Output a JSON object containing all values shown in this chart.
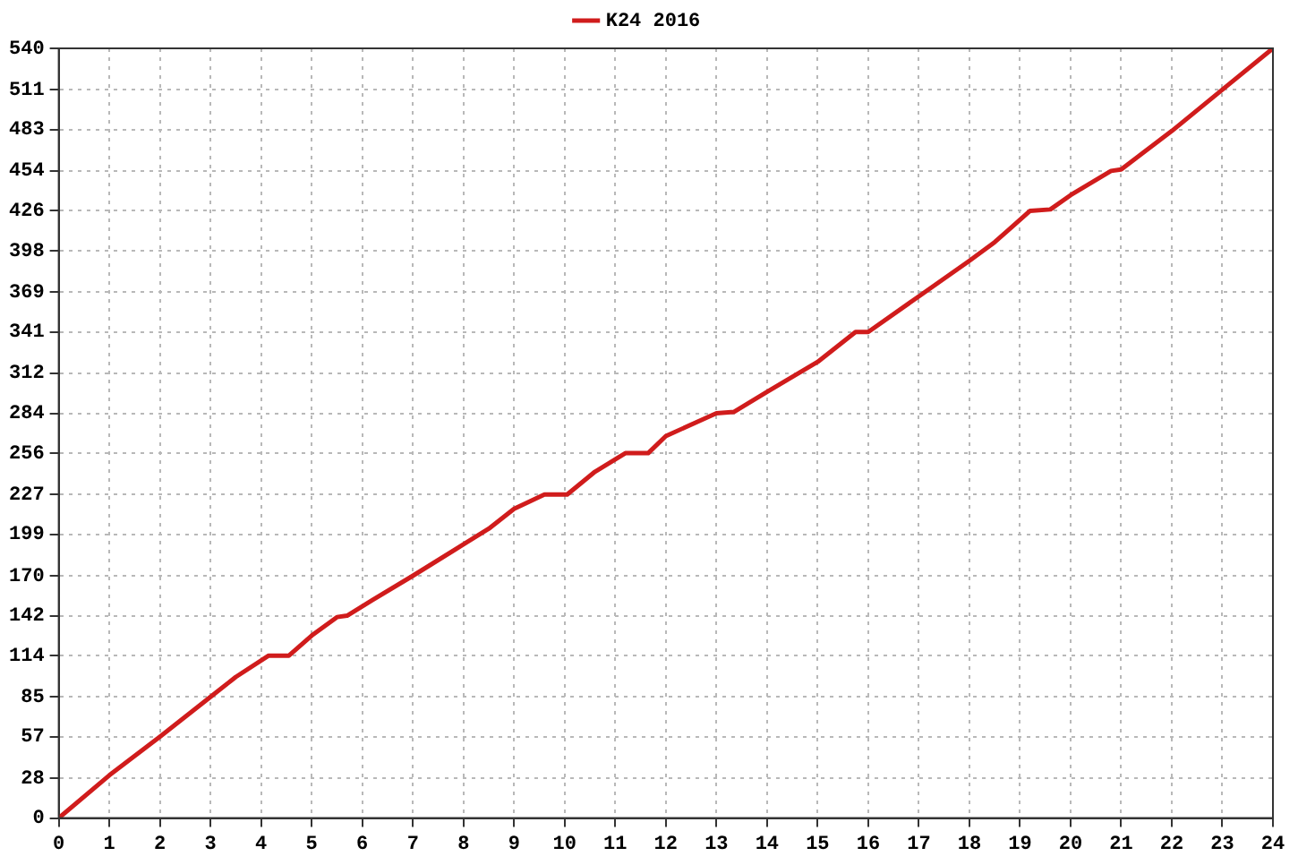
{
  "chart_data": {
    "type": "line",
    "x": [
      0,
      1,
      2,
      3,
      3.5,
      4.15,
      4.55,
      5,
      5.5,
      5.7,
      6.2,
      7,
      8,
      8.5,
      9,
      9.6,
      10.05,
      10.6,
      11.2,
      11.65,
      12,
      13,
      13.35,
      14,
      15,
      15.75,
      16,
      17,
      18,
      18.5,
      19.2,
      19.6,
      20,
      20.8,
      21,
      22,
      23,
      24
    ],
    "series": [
      {
        "name": "K24 2016",
        "color": "#d01c1c",
        "values": [
          0,
          30,
          57,
          85,
          99,
          114,
          114,
          128,
          141,
          142,
          153,
          170,
          192,
          203,
          217,
          227,
          227,
          243,
          256,
          256,
          268,
          284,
          285,
          299,
          320,
          341,
          341,
          366,
          391,
          404,
          426,
          427,
          437,
          454,
          455,
          482,
          511,
          540
        ]
      }
    ],
    "xlim": [
      0,
      24
    ],
    "xticks": [
      0,
      1,
      2,
      3,
      4,
      5,
      6,
      7,
      8,
      9,
      10,
      11,
      12,
      13,
      14,
      15,
      16,
      17,
      18,
      19,
      20,
      21,
      22,
      23,
      24
    ],
    "ylim": [
      0,
      540
    ],
    "yticks": [
      0,
      28,
      57,
      85,
      114,
      142,
      170,
      199,
      227,
      256,
      284,
      312,
      341,
      369,
      398,
      426,
      454,
      483,
      511,
      540
    ],
    "grid": true,
    "legend": "top",
    "marker": "none",
    "line_style": "solid"
  }
}
